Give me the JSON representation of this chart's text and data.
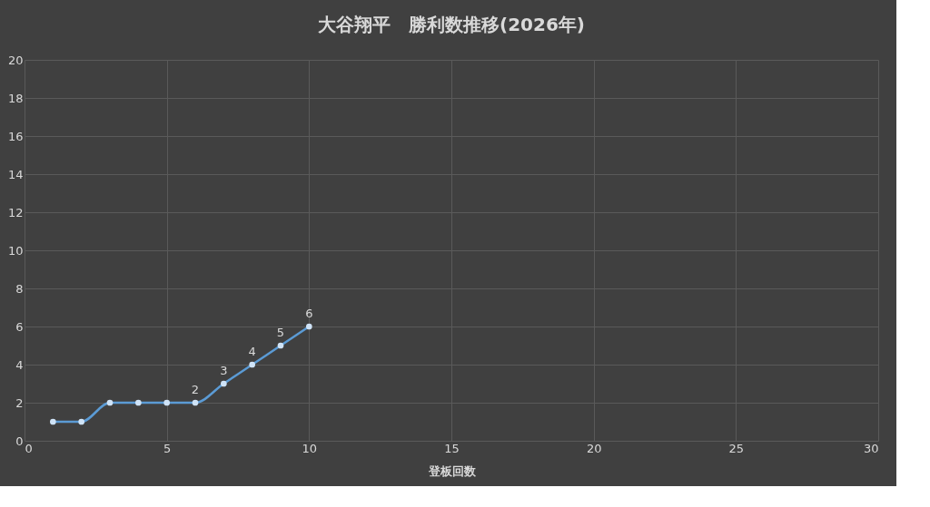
{
  "chart_data": {
    "type": "line",
    "title": "大谷翔平　勝利数推移(2026年)",
    "xlabel": "登板回数",
    "x": [
      1,
      2,
      3,
      4,
      5,
      6,
      7,
      8,
      9,
      10
    ],
    "series": [
      {
        "color": "#5b9bd5",
        "values": [
          1,
          1,
          2,
          2,
          2,
          2,
          3,
          4,
          5,
          6
        ],
        "value_labels": [
          null,
          null,
          null,
          null,
          null,
          "2",
          "3",
          "4",
          "5",
          "6"
        ]
      }
    ],
    "xlim": [
      0,
      30
    ],
    "xticks": [
      0,
      5,
      10,
      15,
      20,
      25,
      30
    ],
    "ylim": [
      0,
      20
    ],
    "yticks": [
      0,
      2,
      4,
      6,
      8,
      10,
      12,
      14,
      16,
      18,
      20
    ],
    "grid": true,
    "marker": "circle",
    "line_style": "solid"
  }
}
